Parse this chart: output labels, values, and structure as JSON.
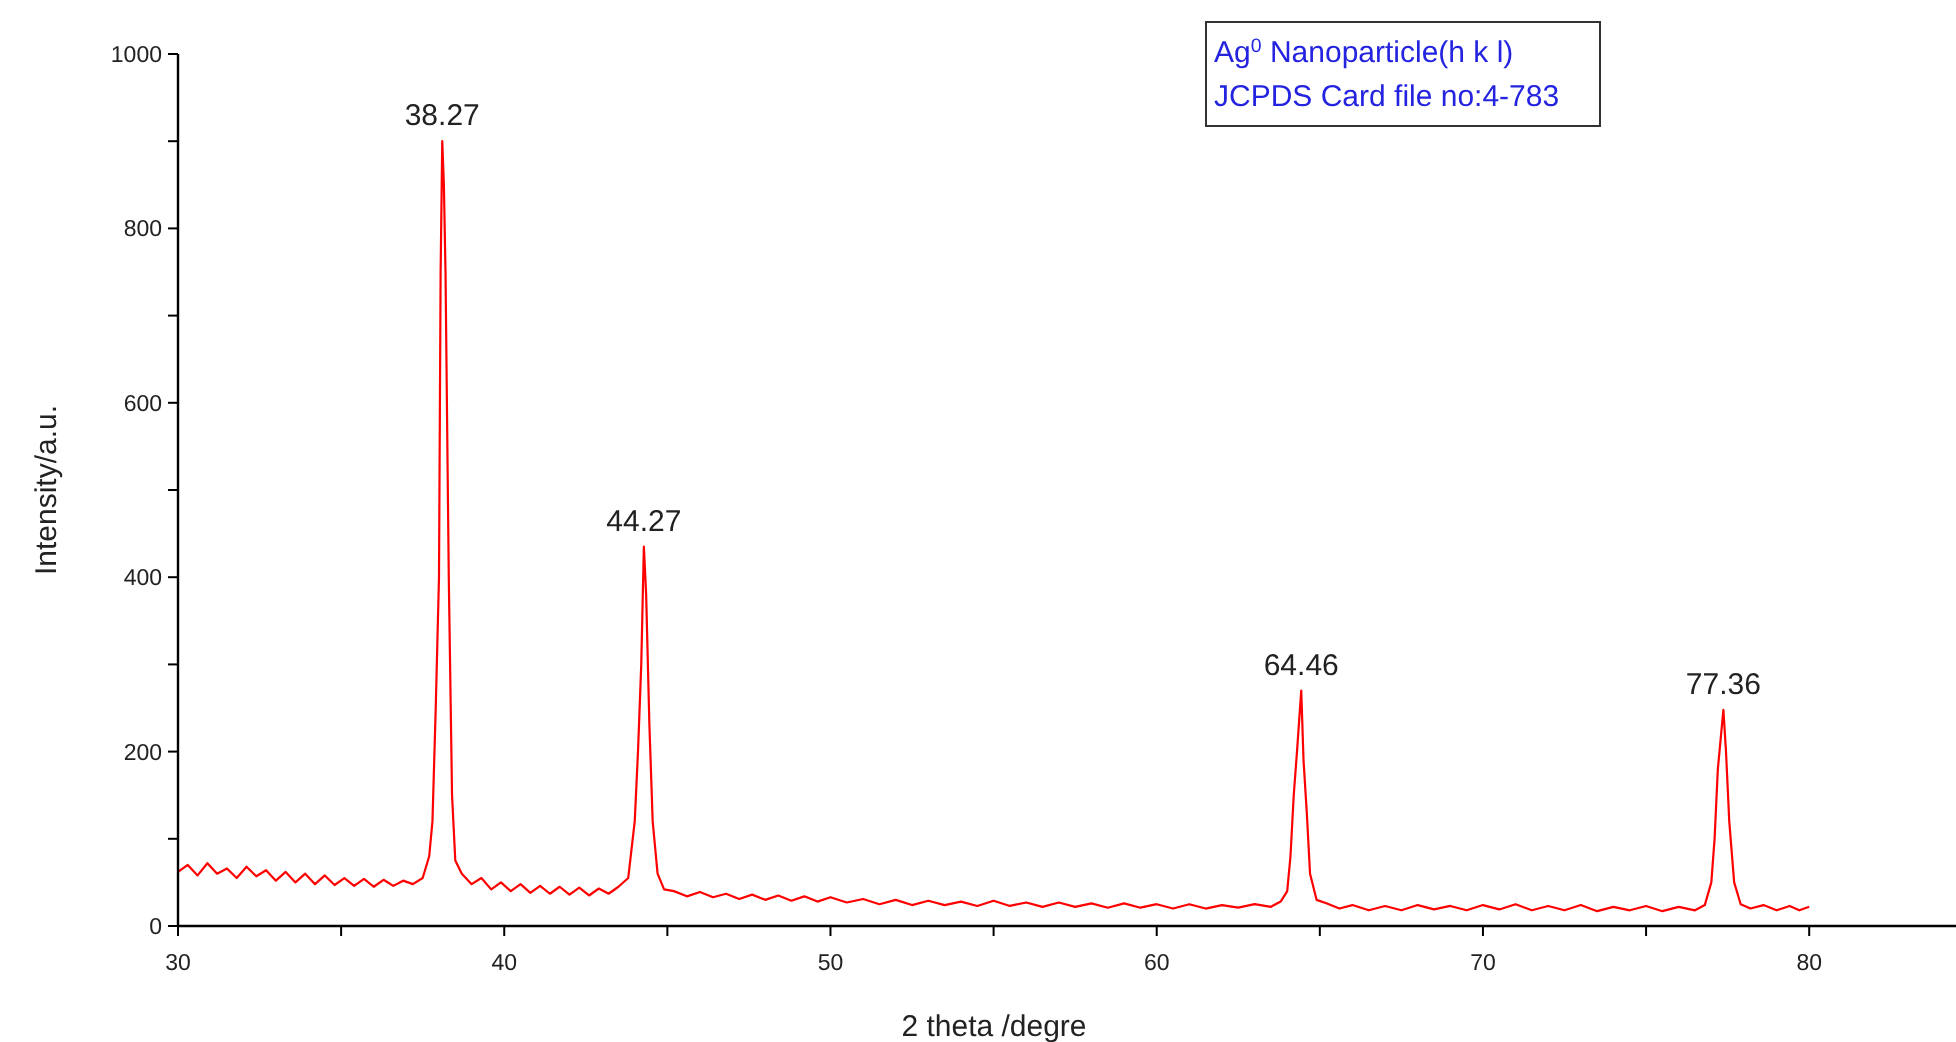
{
  "chart_data": {
    "type": "line",
    "xlabel": "2 theta /degre",
    "ylabel": "Intensity/a.u.",
    "x": [
      30,
      30.3,
      30.6,
      30.9,
      31.2,
      31.5,
      31.8,
      32.1,
      32.4,
      32.7,
      33,
      33.3,
      33.6,
      33.9,
      34.2,
      34.5,
      34.8,
      35.1,
      35.4,
      35.7,
      36,
      36.3,
      36.6,
      36.9,
      37.2,
      37.5,
      37.7,
      37.8,
      37.9,
      38.0,
      38.05,
      38.1,
      38.15,
      38.2,
      38.3,
      38.4,
      38.5,
      38.7,
      39,
      39.3,
      39.6,
      39.9,
      40.2,
      40.5,
      40.8,
      41.1,
      41.4,
      41.7,
      42,
      42.3,
      42.6,
      42.9,
      43.2,
      43.5,
      43.8,
      44.0,
      44.1,
      44.2,
      44.28,
      44.35,
      44.45,
      44.55,
      44.7,
      44.9,
      45.2,
      45.6,
      46,
      46.4,
      46.8,
      47.2,
      47.6,
      48,
      48.4,
      48.8,
      49.2,
      49.6,
      50,
      50.5,
      51,
      51.5,
      52,
      52.5,
      53,
      53.5,
      54,
      54.5,
      55,
      55.5,
      56,
      56.5,
      57,
      57.5,
      58,
      58.5,
      59,
      59.5,
      60,
      60.5,
      61,
      61.5,
      62,
      62.5,
      63,
      63.5,
      63.8,
      64,
      64.1,
      64.2,
      64.3,
      64.43,
      64.5,
      64.6,
      64.7,
      64.9,
      65.2,
      65.6,
      66,
      66.5,
      67,
      67.5,
      68,
      68.5,
      69,
      69.5,
      70,
      70.5,
      71,
      71.5,
      72,
      72.5,
      73,
      73.5,
      74,
      74.5,
      75,
      75.5,
      76,
      76.5,
      76.8,
      77,
      77.1,
      77.2,
      77.37,
      77.45,
      77.55,
      77.7,
      77.9,
      78.2,
      78.6,
      79,
      79.4,
      79.7,
      80
    ],
    "series": [
      {
        "color": "#ff0000",
        "values": [
          62,
          70,
          58,
          72,
          60,
          66,
          55,
          68,
          57,
          64,
          52,
          62,
          50,
          60,
          48,
          58,
          47,
          55,
          46,
          54,
          45,
          53,
          46,
          52,
          48,
          55,
          80,
          120,
          250,
          400,
          750,
          900,
          850,
          750,
          400,
          150,
          75,
          60,
          48,
          55,
          42,
          50,
          40,
          48,
          38,
          46,
          37,
          45,
          36,
          44,
          35,
          43,
          37,
          45,
          55,
          120,
          200,
          300,
          435,
          380,
          230,
          120,
          60,
          42,
          40,
          34,
          39,
          33,
          37,
          31,
          36,
          30,
          35,
          29,
          34,
          28,
          33,
          27,
          31,
          25,
          30,
          24,
          29,
          24,
          28,
          23,
          29,
          23,
          27,
          22,
          27,
          22,
          26,
          21,
          26,
          21,
          25,
          20,
          25,
          20,
          24,
          21,
          25,
          22,
          28,
          40,
          80,
          150,
          200,
          270,
          190,
          130,
          60,
          30,
          26,
          20,
          24,
          18,
          23,
          18,
          24,
          19,
          23,
          18,
          24,
          19,
          25,
          18,
          23,
          18,
          24,
          17,
          22,
          18,
          23,
          17,
          22,
          18,
          24,
          50,
          100,
          180,
          248,
          200,
          120,
          50,
          25,
          20,
          24,
          18,
          23,
          18,
          22
        ]
      }
    ],
    "xlim": [
      30,
      84.5
    ],
    "ylim": [
      0,
      1000
    ],
    "xticks": [
      30,
      {
        "value": 35,
        "label": null
      },
      40,
      {
        "value": 45,
        "label": null
      },
      50,
      {
        "value": 55,
        "label": null
      },
      60,
      {
        "value": 65,
        "label": null
      },
      70,
      {
        "value": 75,
        "label": null
      },
      80
    ],
    "yticks": [
      0,
      {
        "value": 100,
        "label": null
      },
      200,
      {
        "value": 300,
        "label": null
      },
      400,
      {
        "value": 500,
        "label": null
      },
      600,
      {
        "value": 700,
        "label": null
      },
      800,
      {
        "value": 900,
        "label": null
      },
      1000
    ],
    "grid": false,
    "marker": "none",
    "line_style": "solid",
    "annotations": [
      {
        "text": "38.27",
        "x": 38.1,
        "y": 900
      },
      {
        "text": "44.27",
        "x": 44.28,
        "y": 435
      },
      {
        "text": "64.46",
        "x": 64.43,
        "y": 270
      },
      {
        "text": "77.36",
        "x": 77.37,
        "y": 248
      },
      "Ag$^{0}$ Nanoparticle(h k l)",
      "JCPDS Card file no:4-783"
    ]
  }
}
